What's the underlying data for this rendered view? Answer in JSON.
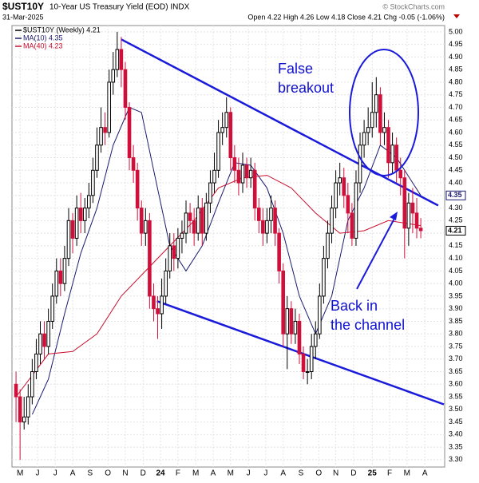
{
  "chart_data": {
    "type": "candlestick",
    "title": "$UST10Y",
    "subtitle": "10-Year US Treasury Yield (EOD) INDX",
    "date": "31-Mar-2025",
    "quote": "Open 4.22 High 4.26 Low 4.18 Close 4.21 Chg -0.05 (-1.06%)",
    "watermark": "© StockCharts.com",
    "xlim": [
      -1,
      105.9
    ],
    "ylim": [
      3.271,
      5.025
    ],
    "grid": true,
    "up_color": "#000000",
    "down_color": "#d0103a",
    "candles": {
      "name": "$UST10Y (Weekly) 4.21",
      "end_label": "4.21",
      "open": [
        3.6,
        3.55,
        3.45,
        3.47,
        3.55,
        3.65,
        3.72,
        3.8,
        3.75,
        3.85,
        3.95,
        4.05,
        4.0,
        4.1,
        4.25,
        4.18,
        4.3,
        4.25,
        4.3,
        4.35,
        4.45,
        4.55,
        4.62,
        4.6,
        4.8,
        4.85,
        4.93,
        4.85,
        4.7,
        4.5,
        4.45,
        4.3,
        4.2,
        4.25,
        3.95,
        3.9,
        3.88,
        3.95,
        4.05,
        4.15,
        4.1,
        4.18,
        4.2,
        4.28,
        4.25,
        4.2,
        4.3,
        4.2,
        4.32,
        4.4,
        4.45,
        4.6,
        4.62,
        4.68,
        4.5,
        4.45,
        4.4,
        4.47,
        4.42,
        4.45,
        4.3,
        4.25,
        4.2,
        4.25,
        4.3,
        4.2,
        4.05,
        3.8,
        3.9,
        3.8,
        3.85,
        3.72,
        3.65,
        3.65,
        3.75,
        3.8,
        3.95,
        4.1,
        4.2,
        4.3,
        4.4,
        4.42,
        4.35,
        4.28,
        4.18,
        4.4,
        4.55,
        4.6,
        4.62,
        4.68,
        4.75,
        4.6,
        4.62,
        4.48,
        4.55,
        4.45,
        4.42,
        4.22,
        4.32,
        4.28,
        4.22
      ],
      "high": [
        3.65,
        3.58,
        3.55,
        3.6,
        3.7,
        3.78,
        3.85,
        3.85,
        3.9,
        4.0,
        4.1,
        4.1,
        4.15,
        4.3,
        4.28,
        4.35,
        4.36,
        4.34,
        4.4,
        4.5,
        4.62,
        4.7,
        4.68,
        4.85,
        4.92,
        5.0,
        4.98,
        4.88,
        4.72,
        4.55,
        4.48,
        4.33,
        4.3,
        4.28,
        4.0,
        3.95,
        4.02,
        4.1,
        4.2,
        4.2,
        4.22,
        4.25,
        4.33,
        4.32,
        4.3,
        4.35,
        4.34,
        4.36,
        4.45,
        4.52,
        4.65,
        4.68,
        4.74,
        4.7,
        4.55,
        4.5,
        4.52,
        4.5,
        4.5,
        4.48,
        4.34,
        4.3,
        4.3,
        4.35,
        4.33,
        4.22,
        4.08,
        3.95,
        3.93,
        3.9,
        3.88,
        3.75,
        3.7,
        3.8,
        3.85,
        4.0,
        4.15,
        4.25,
        4.35,
        4.45,
        4.48,
        4.46,
        4.4,
        4.32,
        4.45,
        4.6,
        4.65,
        4.7,
        4.8,
        4.82,
        4.78,
        4.68,
        4.65,
        4.6,
        4.58,
        4.5,
        4.45,
        4.36,
        4.38,
        4.34,
        4.26
      ],
      "low": [
        3.45,
        3.3,
        3.42,
        3.44,
        3.52,
        3.62,
        3.68,
        3.7,
        3.72,
        3.82,
        3.92,
        3.95,
        3.97,
        4.07,
        4.12,
        4.15,
        4.2,
        4.2,
        4.26,
        4.32,
        4.42,
        4.52,
        4.55,
        4.58,
        4.75,
        4.82,
        4.78,
        4.65,
        4.45,
        4.4,
        4.25,
        4.15,
        4.15,
        3.9,
        3.85,
        3.78,
        3.82,
        3.92,
        4.02,
        4.05,
        4.06,
        4.12,
        4.16,
        4.2,
        4.15,
        4.17,
        4.15,
        4.17,
        4.28,
        4.36,
        4.42,
        4.55,
        4.58,
        4.45,
        4.4,
        4.35,
        4.36,
        4.38,
        4.38,
        4.25,
        4.2,
        4.15,
        4.16,
        4.2,
        4.15,
        4.0,
        3.75,
        3.66,
        3.76,
        3.76,
        3.68,
        3.62,
        3.6,
        3.62,
        3.7,
        3.78,
        3.92,
        4.06,
        4.16,
        4.26,
        4.35,
        4.3,
        4.2,
        4.15,
        4.15,
        4.36,
        4.5,
        4.55,
        4.58,
        4.62,
        4.55,
        4.55,
        4.42,
        4.44,
        4.4,
        4.35,
        4.1,
        4.15,
        4.2,
        4.18,
        4.18
      ],
      "close": [
        3.55,
        3.45,
        3.47,
        3.55,
        3.65,
        3.72,
        3.8,
        3.75,
        3.85,
        3.95,
        4.05,
        4.0,
        4.1,
        4.25,
        4.18,
        4.3,
        4.25,
        4.3,
        4.35,
        4.45,
        4.55,
        4.62,
        4.6,
        4.8,
        4.85,
        4.93,
        4.85,
        4.7,
        4.5,
        4.45,
        4.3,
        4.2,
        4.25,
        3.95,
        3.9,
        3.88,
        3.95,
        4.05,
        4.15,
        4.1,
        4.18,
        4.2,
        4.28,
        4.25,
        4.2,
        4.3,
        4.2,
        4.32,
        4.4,
        4.45,
        4.6,
        4.62,
        4.68,
        4.5,
        4.45,
        4.4,
        4.47,
        4.42,
        4.45,
        4.3,
        4.25,
        4.2,
        4.25,
        4.3,
        4.2,
        4.05,
        3.8,
        3.9,
        3.8,
        3.85,
        3.72,
        3.65,
        3.65,
        3.75,
        3.8,
        3.95,
        4.1,
        4.2,
        4.3,
        4.4,
        4.42,
        4.35,
        4.28,
        4.18,
        4.4,
        4.55,
        4.6,
        4.62,
        4.68,
        4.75,
        4.6,
        4.62,
        4.48,
        4.55,
        4.45,
        4.42,
        4.22,
        4.32,
        4.28,
        4.22,
        4.21
      ]
    },
    "series": [
      {
        "name": "MA(10) 4.35",
        "color": "#1a1a6e",
        "end_label": "4.35",
        "x": [
          4,
          8,
          12,
          16,
          20,
          24,
          28,
          31,
          34,
          38,
          42,
          46,
          50,
          54,
          58,
          62,
          66,
          70,
          74,
          78,
          82,
          86,
          90,
          94,
          98,
          100
        ],
        "values": [
          3.48,
          3.62,
          3.88,
          4.12,
          4.3,
          4.55,
          4.7,
          4.68,
          4.45,
          4.15,
          4.05,
          4.15,
          4.32,
          4.48,
          4.47,
          4.38,
          4.2,
          3.95,
          3.8,
          3.95,
          4.25,
          4.38,
          4.55,
          4.5,
          4.4,
          4.35
        ]
      },
      {
        "name": "MA(40) 4.23",
        "color": "#c8102e",
        "x": [
          0,
          8,
          14,
          20,
          26,
          32,
          38,
          44,
          50,
          56,
          62,
          68,
          74,
          80,
          86,
          92,
          100
        ],
        "values": [
          3.55,
          3.72,
          3.73,
          3.8,
          3.95,
          4.05,
          4.15,
          4.25,
          4.38,
          4.42,
          4.43,
          4.38,
          4.28,
          4.2,
          4.21,
          4.25,
          4.23
        ]
      }
    ],
    "trendlines": [
      {
        "color": "#1a1adb",
        "x": [
          26,
          104.3
        ],
        "values": [
          4.97,
          4.31
        ]
      },
      {
        "color": "#1a1adb",
        "x": [
          34.8,
          105.7
        ],
        "values": [
          3.93,
          3.52
        ]
      }
    ],
    "annotations": [
      {
        "lines": [
          "False",
          "breakout"
        ]
      },
      {
        "lines": [
          "Back in",
          "the channel"
        ]
      }
    ],
    "yticks": [
      {
        "value": 3.3,
        "label": "3.30"
      },
      {
        "value": 3.35,
        "label": "3.35"
      },
      {
        "value": 3.4,
        "label": "3.40"
      },
      {
        "value": 3.45,
        "label": "3.45"
      },
      {
        "value": 3.5,
        "label": "3.50"
      },
      {
        "value": 3.55,
        "label": "3.55"
      },
      {
        "value": 3.6,
        "label": "3.60"
      },
      {
        "value": 3.65,
        "label": "3.65"
      },
      {
        "value": 3.7,
        "label": "3.70"
      },
      {
        "value": 3.75,
        "label": "3.75"
      },
      {
        "value": 3.8,
        "label": "3.80"
      },
      {
        "value": 3.85,
        "label": "3.85"
      },
      {
        "value": 3.9,
        "label": "3.90"
      },
      {
        "value": 3.95,
        "label": "3.95"
      },
      {
        "value": 4.0,
        "label": "4.00"
      },
      {
        "value": 4.05,
        "label": "4.05"
      },
      {
        "value": 4.1,
        "label": "4.10"
      },
      {
        "value": 4.15,
        "label": "4.15"
      },
      {
        "value": 4.2,
        "label": "4.20"
      },
      {
        "value": 4.25,
        "label": "4.25"
      },
      {
        "value": 4.3,
        "label": "4.30"
      },
      {
        "value": 4.35,
        "label": "4.35"
      },
      {
        "value": 4.4,
        "label": "4.40"
      },
      {
        "value": 4.45,
        "label": "4.45"
      },
      {
        "value": 4.5,
        "label": "4.50"
      },
      {
        "value": 4.55,
        "label": "4.55"
      },
      {
        "value": 4.6,
        "label": "4.60"
      },
      {
        "value": 4.65,
        "label": "4.65"
      },
      {
        "value": 4.7,
        "label": "4.70"
      },
      {
        "value": 4.75,
        "label": "4.75"
      },
      {
        "value": 4.8,
        "label": "4.80"
      },
      {
        "value": 4.85,
        "label": "4.85"
      },
      {
        "value": 4.9,
        "label": "4.90"
      },
      {
        "value": 4.95,
        "label": "4.95"
      },
      {
        "value": 5.0,
        "label": "5.00"
      }
    ],
    "xticks": [
      {
        "value": 1,
        "label": "M"
      },
      {
        "value": 5.3,
        "label": "J"
      },
      {
        "value": 9.7,
        "label": "J"
      },
      {
        "value": 14,
        "label": "A"
      },
      {
        "value": 18.3,
        "label": "S"
      },
      {
        "value": 22.7,
        "label": "O"
      },
      {
        "value": 27,
        "label": "N"
      },
      {
        "value": 31.4,
        "label": "D"
      },
      {
        "value": 35.7,
        "label": "24"
      },
      {
        "value": 40,
        "label": "F"
      },
      {
        "value": 44.4,
        "label": "M"
      },
      {
        "value": 48.7,
        "label": "A"
      },
      {
        "value": 53,
        "label": "M"
      },
      {
        "value": 57.4,
        "label": "J"
      },
      {
        "value": 61.7,
        "label": "J"
      },
      {
        "value": 66,
        "label": "A"
      },
      {
        "value": 70.4,
        "label": "S"
      },
      {
        "value": 74.8,
        "label": "O"
      },
      {
        "value": 79,
        "label": "N"
      },
      {
        "value": 83.4,
        "label": "D"
      },
      {
        "value": 88,
        "label": "25"
      },
      {
        "value": 92.3,
        "label": "F"
      },
      {
        "value": 96.6,
        "label": "M"
      },
      {
        "value": 101,
        "label": "A"
      }
    ]
  }
}
